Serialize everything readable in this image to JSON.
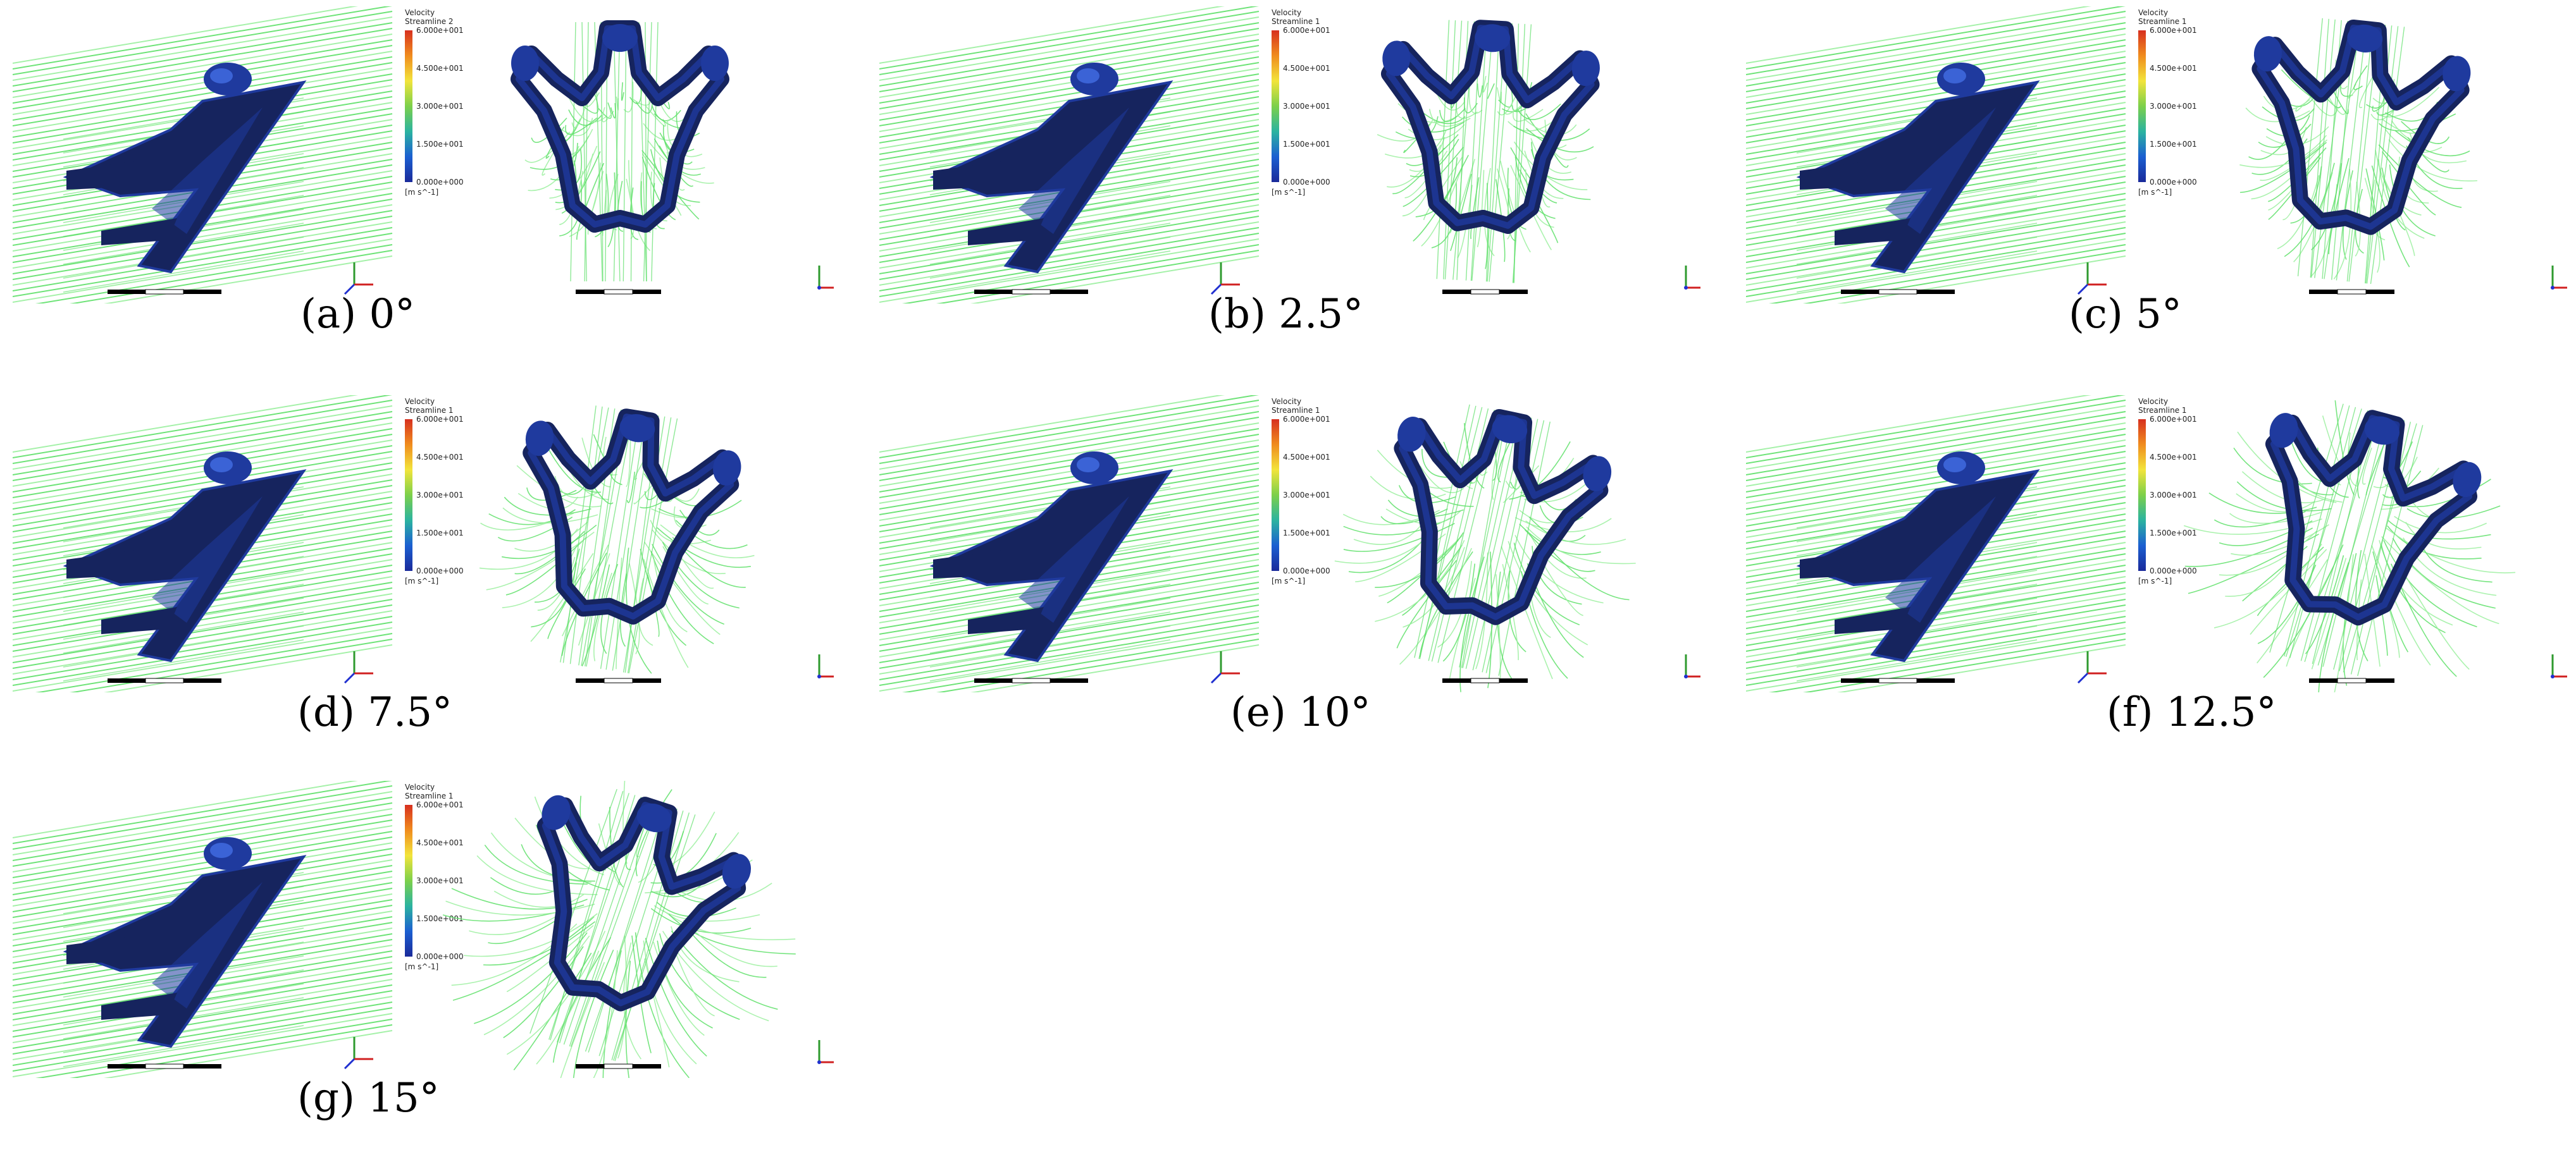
{
  "figure": {
    "legend": {
      "title": "Velocity",
      "subtitle": "Streamline 1",
      "subtitle_first": "Streamline 2",
      "ticks": [
        "6.000e+001",
        "4.500e+001",
        "3.000e+001",
        "1.500e+001",
        "0.000e+000"
      ],
      "unit": "[m s^-1]",
      "colors": [
        "#d7301f",
        "#f08c1e",
        "#f2e43b",
        "#7cd04a",
        "#2bb3a0",
        "#1b5fd1",
        "#1a2a9a"
      ]
    },
    "panels": [
      {
        "id": "a",
        "label": "(a) 0°"
      },
      {
        "id": "b",
        "label": "(b) 2.5°"
      },
      {
        "id": "c",
        "label": "(c) 5°"
      },
      {
        "id": "d",
        "label": "(d) 7.5°"
      },
      {
        "id": "e",
        "label": "(e) 10°"
      },
      {
        "id": "f",
        "label": "(f) 12.5°"
      },
      {
        "id": "g",
        "label": "(g) 15°"
      }
    ],
    "colors": {
      "streamline": "#5fe06a",
      "streamline_light": "#9cf0a0",
      "body_dark": "#16245e",
      "body_mid": "#1f3a9e",
      "body_light": "#3b63d6"
    }
  }
}
